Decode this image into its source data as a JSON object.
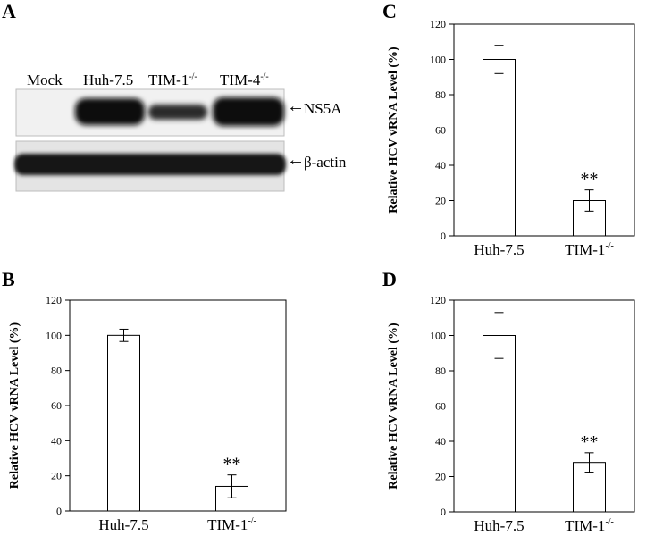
{
  "panels": {
    "a": {
      "letter": "A"
    },
    "b": {
      "letter": "B"
    },
    "c": {
      "letter": "C"
    },
    "d": {
      "letter": "D"
    }
  },
  "blot": {
    "lanes": [
      {
        "name": "Mock",
        "sup": ""
      },
      {
        "name": "Huh-7.5",
        "sup": ""
      },
      {
        "name": "TIM-1",
        "sup": "-/-"
      },
      {
        "name": "TIM-4",
        "sup": "-/-"
      }
    ],
    "bands": [
      "NS5A",
      "β-actin"
    ],
    "arrow": "←"
  },
  "chart_data": [
    {
      "id": "C",
      "type": "bar",
      "categories": [
        "Huh-7.5",
        "TIM-1"
      ],
      "category_sup": [
        "",
        "-/-"
      ],
      "values": [
        100,
        20
      ],
      "errors": [
        8,
        6
      ],
      "annotations": [
        "",
        "**"
      ],
      "ylabel": "Relative HCV vRNA Level (%)",
      "ylim": [
        0,
        120
      ],
      "yticks": [
        0,
        20,
        40,
        60,
        80,
        100,
        120
      ]
    },
    {
      "id": "B",
      "type": "bar",
      "categories": [
        "Huh-7.5",
        "TIM-1"
      ],
      "category_sup": [
        "",
        "-/-"
      ],
      "values": [
        100,
        14
      ],
      "errors": [
        3.5,
        6.5
      ],
      "annotations": [
        "",
        "**"
      ],
      "ylabel": "Relative HCV vRNA Level (%)",
      "ylim": [
        0,
        120
      ],
      "yticks": [
        0,
        20,
        40,
        60,
        80,
        100,
        120
      ]
    },
    {
      "id": "D",
      "type": "bar",
      "categories": [
        "Huh-7.5",
        "TIM-1"
      ],
      "category_sup": [
        "",
        "-/-"
      ],
      "values": [
        100,
        28
      ],
      "errors": [
        13,
        5.5
      ],
      "annotations": [
        "",
        "**"
      ],
      "ylabel": "Relative HCV vRNA Level (%)",
      "ylim": [
        0,
        120
      ],
      "yticks": [
        0,
        20,
        40,
        60,
        80,
        100,
        120
      ]
    }
  ]
}
